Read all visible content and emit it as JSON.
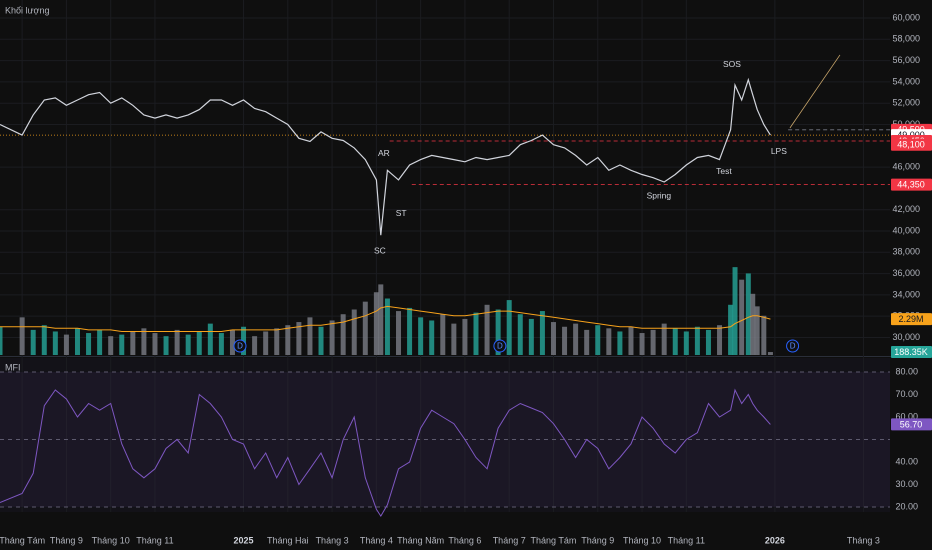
{
  "chart_data": [
    {
      "type": "line",
      "color": "#d1d4dc",
      "x": [
        -0.5,
        0,
        0.25,
        0.5,
        0.75,
        1,
        1.25,
        1.5,
        1.75,
        2,
        2.25,
        2.5,
        2.75,
        3,
        3.25,
        3.5,
        3.75,
        4,
        4.25,
        4.5,
        4.75,
        5,
        5.25,
        5.5,
        5.75,
        6,
        6.25,
        6.5,
        6.75,
        7,
        7.25,
        7.5,
        7.75,
        8,
        8.1,
        8.25,
        8.5,
        8.75,
        9,
        9.25,
        9.5,
        9.75,
        10,
        10.25,
        10.5,
        10.75,
        11,
        11.25,
        11.5,
        11.75,
        12,
        12.25,
        12.5,
        12.75,
        13,
        13.25,
        13.5,
        13.75,
        14,
        14.25,
        14.5,
        14.75,
        15,
        15.25,
        15.5,
        15.75,
        16,
        16.1,
        16.25,
        16.4,
        16.5,
        16.6,
        16.75,
        16.9
      ],
      "values": [
        50000,
        49000,
        50900,
        52300,
        52500,
        51800,
        52300,
        52800,
        53000,
        52000,
        52500,
        51800,
        50900,
        50600,
        50900,
        50600,
        50900,
        51400,
        52300,
        52300,
        51800,
        52300,
        51500,
        51200,
        50600,
        50000,
        48700,
        48400,
        49300,
        48700,
        48500,
        47800,
        46700,
        44800,
        39600,
        45700,
        44800,
        46200,
        46700,
        47100,
        46900,
        46700,
        46500,
        46900,
        46700,
        46900,
        47100,
        48100,
        48500,
        49000,
        48100,
        47800,
        47100,
        46200,
        46900,
        45700,
        46200,
        45700,
        45300,
        45000,
        44600,
        45300,
        46200,
        46900,
        47100,
        46700,
        49500,
        53700,
        52300,
        54200,
        52800,
        51400,
        50000,
        49000
      ],
      "xlim": [
        -0.5,
        19.6
      ],
      "xticks": [
        {
          "value": 0,
          "label": "Tháng Tám"
        },
        {
          "value": 1,
          "label": "Tháng 9"
        },
        {
          "value": 2,
          "label": "Tháng 10"
        },
        {
          "value": 3,
          "label": "Tháng 11"
        },
        {
          "value": 5,
          "label": "2025",
          "bold": true
        },
        {
          "value": 6,
          "label": "Tháng Hai"
        },
        {
          "value": 7,
          "label": "Tháng 3"
        },
        {
          "value": 8,
          "label": "Tháng 4"
        },
        {
          "value": 9,
          "label": "Tháng Năm"
        },
        {
          "value": 10,
          "label": "Tháng 6"
        },
        {
          "value": 11,
          "label": "Tháng 7"
        },
        {
          "value": 12,
          "label": "Tháng Tám"
        },
        {
          "value": 13,
          "label": "Tháng 9"
        },
        {
          "value": 14,
          "label": "Tháng 10"
        },
        {
          "value": 15,
          "label": "Tháng 11"
        },
        {
          "value": 17,
          "label": "2026",
          "bold": true
        },
        {
          "value": 19,
          "label": "Tháng 3"
        }
      ],
      "ylim": [
        28355,
        61690
      ],
      "yticks": [
        {
          "value": 60000,
          "label": "60,000"
        },
        {
          "value": 58000,
          "label": "58,000"
        },
        {
          "value": 56000,
          "label": "56,000"
        },
        {
          "value": 54000,
          "label": "54,000"
        },
        {
          "value": 52000,
          "label": "52,000"
        },
        {
          "value": 50000,
          "label": "50,000"
        },
        {
          "value": 46000,
          "label": "46,000"
        },
        {
          "value": 42000,
          "label": "42,000"
        },
        {
          "value": 40000,
          "label": "40,000"
        },
        {
          "value": 38000,
          "label": "38,000"
        },
        {
          "value": 36000,
          "label": "36,000"
        },
        {
          "value": 34000,
          "label": "34,000"
        },
        {
          "value": 32000,
          "label": "32,000"
        },
        {
          "value": 30000,
          "label": "30,000"
        }
      ],
      "grid": true,
      "levels": [
        {
          "value": 49500,
          "label": "49,500",
          "color": "#f23645",
          "line_start": 17.3,
          "line_color": "#787b86"
        },
        {
          "value": 49000,
          "label": "49,000",
          "color": "#ffffff",
          "line_start": -0.5,
          "line_color": "#f7a21b"
        },
        {
          "value": 48450,
          "label": "48,450",
          "color": "#f23645",
          "line_start": 8.3,
          "line_color": "#f23645"
        },
        {
          "value": 48100,
          "label": "48,100",
          "color": "#f23645",
          "line_start": null,
          "line_color": null
        },
        {
          "value": 44350,
          "label": "44,350",
          "color": "#f23645",
          "line_start": 8.8,
          "line_color": "#f23645"
        }
      ],
      "annotations": [
        {
          "text": "SC",
          "x": 8.08,
          "y": 38120
        },
        {
          "text": "AR",
          "x": 8.17,
          "y": 47230
        },
        {
          "text": "ST",
          "x": 8.56,
          "y": 41600
        },
        {
          "text": "Spring",
          "x": 14.38,
          "y": 43280
        },
        {
          "text": "Test",
          "x": 15.85,
          "y": 45540
        },
        {
          "text": "SOS",
          "x": 16.03,
          "y": 55590
        },
        {
          "text": "LPS",
          "x": 17.09,
          "y": 47420
        }
      ],
      "trendline": {
        "x": [
          17.34,
          18.47
        ],
        "y": [
          49670,
          56530
        ],
        "color": "#c9a66b"
      }
    },
    {
      "type": "bar",
      "title": "Khối lượng",
      "up_color": "#26a69a",
      "down_color": "#7a7d86",
      "ma_color": "#f7a21b",
      "x": [
        -0.5,
        0,
        0.25,
        0.5,
        0.75,
        1,
        1.25,
        1.5,
        1.75,
        2,
        2.25,
        2.5,
        2.75,
        3,
        3.25,
        3.5,
        3.75,
        4,
        4.25,
        4.5,
        4.75,
        5,
        5.25,
        5.5,
        5.75,
        6,
        6.25,
        6.5,
        6.75,
        7,
        7.25,
        7.5,
        7.75,
        8,
        8.1,
        8.25,
        8.5,
        8.75,
        9,
        9.25,
        9.5,
        9.75,
        10,
        10.25,
        10.5,
        10.75,
        11,
        11.25,
        11.5,
        11.75,
        12,
        12.25,
        12.5,
        12.75,
        13,
        13.25,
        13.5,
        13.75,
        14,
        14.25,
        14.5,
        14.75,
        15,
        15.25,
        15.5,
        15.75,
        16,
        16.1,
        16.25,
        16.4,
        16.5,
        16.6,
        16.75,
        16.9
      ],
      "values": [
        1.8,
        2.4,
        1.6,
        1.9,
        1.5,
        1.3,
        1.7,
        1.4,
        1.6,
        1.2,
        1.3,
        1.5,
        1.7,
        1.4,
        1.2,
        1.6,
        1.3,
        1.5,
        2.0,
        1.4,
        1.6,
        1.8,
        1.2,
        1.5,
        1.7,
        1.9,
        2.1,
        2.4,
        1.8,
        2.2,
        2.6,
        2.9,
        3.4,
        4.0,
        4.5,
        3.6,
        2.8,
        3.0,
        2.4,
        2.2,
        2.6,
        2.0,
        2.3,
        2.7,
        3.2,
        2.9,
        3.5,
        2.6,
        2.3,
        2.8,
        2.1,
        1.8,
        2.0,
        1.6,
        1.9,
        1.7,
        1.5,
        1.8,
        1.4,
        1.6,
        2.0,
        1.7,
        1.5,
        1.8,
        1.6,
        1.9,
        3.2,
        5.6,
        4.8,
        5.2,
        3.9,
        3.1,
        2.5,
        0.18835
      ],
      "ma_values": [
        1.8,
        1.8,
        1.8,
        1.8,
        1.7,
        1.7,
        1.7,
        1.6,
        1.6,
        1.6,
        1.5,
        1.5,
        1.5,
        1.5,
        1.5,
        1.5,
        1.5,
        1.5,
        1.5,
        1.5,
        1.6,
        1.6,
        1.6,
        1.6,
        1.6,
        1.7,
        1.8,
        1.9,
        1.9,
        2.0,
        2.1,
        2.3,
        2.5,
        2.8,
        3.0,
        3.1,
        3.0,
        2.9,
        2.8,
        2.7,
        2.6,
        2.5,
        2.5,
        2.6,
        2.7,
        2.8,
        2.8,
        2.7,
        2.6,
        2.5,
        2.4,
        2.3,
        2.2,
        2.1,
        2.0,
        1.9,
        1.8,
        1.8,
        1.7,
        1.7,
        1.7,
        1.7,
        1.7,
        1.7,
        1.7,
        1.7,
        1.8,
        2.0,
        2.2,
        2.4,
        2.5,
        2.5,
        2.4,
        2.29
      ],
      "ylim": [
        0,
        5.8
      ],
      "tags": [
        {
          "value": 2.29,
          "label": "2.29M",
          "color": "#f7a21b"
        },
        {
          "value": 0.18835,
          "label": "188.35K",
          "color": "#26a69a"
        }
      ],
      "events": [
        {
          "x": 4.92,
          "label": "D"
        },
        {
          "x": 10.79,
          "label": "D"
        },
        {
          "x": 17.4,
          "label": "D"
        }
      ]
    },
    {
      "type": "line",
      "title": "MFI",
      "color": "#7e57c2",
      "x": [
        -0.5,
        0,
        0.25,
        0.5,
        0.75,
        1,
        1.25,
        1.5,
        1.75,
        2,
        2.25,
        2.5,
        2.75,
        3,
        3.25,
        3.5,
        3.75,
        4,
        4.25,
        4.5,
        4.75,
        5,
        5.25,
        5.5,
        5.75,
        6,
        6.25,
        6.5,
        6.75,
        7,
        7.25,
        7.5,
        7.75,
        8,
        8.1,
        8.25,
        8.5,
        8.75,
        9,
        9.25,
        9.5,
        9.75,
        10,
        10.25,
        10.5,
        10.75,
        11,
        11.25,
        11.5,
        11.75,
        12,
        12.25,
        12.5,
        12.75,
        13,
        13.25,
        13.5,
        13.75,
        14,
        14.25,
        14.5,
        14.75,
        15,
        15.25,
        15.5,
        15.75,
        16,
        16.1,
        16.25,
        16.4,
        16.5,
        16.6,
        16.75,
        16.9
      ],
      "values": [
        22,
        26,
        35,
        65,
        72,
        68,
        60,
        66,
        63,
        66,
        48,
        37,
        33,
        37,
        46,
        50,
        44,
        70,
        66,
        60,
        50,
        48,
        37,
        44,
        33,
        42,
        30,
        37,
        44,
        33,
        50,
        60,
        33,
        19,
        16,
        21,
        37,
        40,
        55,
        63,
        60,
        57,
        50,
        42,
        37,
        55,
        63,
        66,
        64,
        62,
        57,
        50,
        42,
        50,
        46,
        37,
        42,
        48,
        60,
        55,
        48,
        44,
        50,
        53,
        66,
        60,
        63,
        72,
        66,
        70,
        66,
        63,
        60,
        56.7
      ],
      "ylim": [
        17.8,
        86.2
      ],
      "yticks": [
        {
          "value": 80,
          "label": "80.00"
        },
        {
          "value": 70,
          "label": "70.00"
        },
        {
          "value": 60,
          "label": "60.00"
        },
        {
          "value": 40,
          "label": "40.00"
        },
        {
          "value": 30,
          "label": "30.00"
        },
        {
          "value": 20,
          "label": "20.00"
        }
      ],
      "bands": [
        80,
        50,
        20
      ],
      "tag": {
        "value": 56.7,
        "label": "56.70",
        "color": "#7e57c2"
      }
    }
  ]
}
